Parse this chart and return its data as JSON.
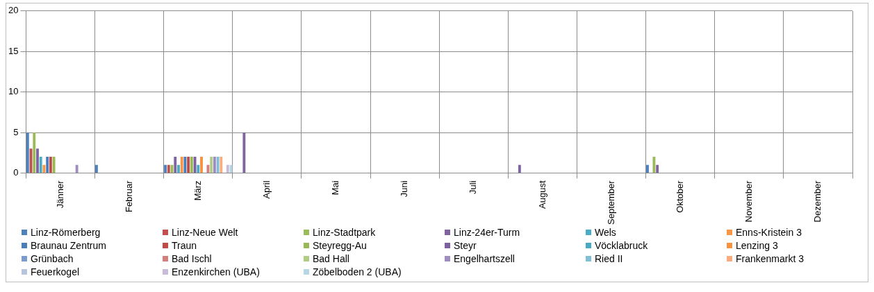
{
  "chart_data": {
    "type": "bar",
    "categories": [
      "Jänner",
      "Februar",
      "März",
      "April",
      "Mai",
      "Juni",
      "Juli",
      "August",
      "September",
      "Oktober",
      "November",
      "Dezember"
    ],
    "ylim": [
      0,
      20
    ],
    "yticks": [
      0,
      5,
      10,
      15,
      20
    ],
    "grid": true,
    "legend": "bottom",
    "series": [
      {
        "name": "Linz-Römerberg",
        "color": "#4f81bd",
        "values": [
          5,
          1,
          1,
          0,
          0,
          0,
          0,
          0,
          0,
          1,
          0,
          0
        ]
      },
      {
        "name": "Linz-Neue Welt",
        "color": "#c0504d",
        "values": [
          3,
          0,
          1,
          0,
          0,
          0,
          0,
          0,
          0,
          0,
          0,
          0
        ]
      },
      {
        "name": "Linz-Stadtpark",
        "color": "#9bbb59",
        "values": [
          5,
          0,
          1,
          0,
          0,
          0,
          0,
          0,
          0,
          2,
          0,
          0
        ]
      },
      {
        "name": "Linz-24er-Turm",
        "color": "#8064a2",
        "values": [
          3,
          0,
          2,
          5,
          0,
          0,
          0,
          1,
          0,
          1,
          0,
          0
        ]
      },
      {
        "name": "Wels",
        "color": "#4bacc6",
        "values": [
          2,
          0,
          1,
          0,
          0,
          0,
          0,
          0,
          0,
          0,
          0,
          0
        ]
      },
      {
        "name": "Enns-Kristein 3",
        "color": "#f79646",
        "values": [
          1,
          0,
          2,
          0,
          0,
          0,
          0,
          0,
          0,
          0,
          0,
          0
        ]
      },
      {
        "name": "Braunau Zentrum",
        "color": "#4a7ebb",
        "values": [
          2,
          0,
          2,
          0,
          0,
          0,
          0,
          0,
          0,
          0,
          0,
          0
        ]
      },
      {
        "name": "Traun",
        "color": "#be4b48",
        "values": [
          2,
          0,
          2,
          0,
          0,
          0,
          0,
          0,
          0,
          0,
          0,
          0
        ]
      },
      {
        "name": "Steyregg-Au",
        "color": "#98b954",
        "values": [
          2,
          0,
          2,
          0,
          0,
          0,
          0,
          0,
          0,
          0,
          0,
          0
        ]
      },
      {
        "name": "Steyr",
        "color": "#7d60a0",
        "values": [
          0,
          0,
          2,
          0,
          0,
          0,
          0,
          0,
          0,
          0,
          0,
          0
        ]
      },
      {
        "name": "Vöcklabruck",
        "color": "#46aac5",
        "values": [
          0,
          0,
          1,
          0,
          0,
          0,
          0,
          0,
          0,
          0,
          0,
          0
        ]
      },
      {
        "name": "Lenzing 3",
        "color": "#f69240",
        "values": [
          0,
          0,
          2,
          0,
          0,
          0,
          0,
          0,
          0,
          0,
          0,
          0
        ]
      },
      {
        "name": "Grünbach",
        "color": "#7b9bd0",
        "values": [
          0,
          0,
          0,
          0,
          0,
          0,
          0,
          0,
          0,
          0,
          0,
          0
        ]
      },
      {
        "name": "Bad Ischl",
        "color": "#d37f7c",
        "values": [
          0,
          0,
          1,
          0,
          0,
          0,
          0,
          0,
          0,
          0,
          0,
          0
        ]
      },
      {
        "name": "Bad Hall",
        "color": "#b1cd85",
        "values": [
          0,
          0,
          2,
          0,
          0,
          0,
          0,
          0,
          0,
          0,
          0,
          0
        ]
      },
      {
        "name": "Engelhartszell",
        "color": "#a08cbf",
        "values": [
          1,
          0,
          2,
          0,
          0,
          0,
          0,
          0,
          0,
          0,
          0,
          0
        ]
      },
      {
        "name": "Ried II",
        "color": "#7ebfd7",
        "values": [
          0,
          0,
          2,
          0,
          0,
          0,
          0,
          0,
          0,
          0,
          0,
          0
        ]
      },
      {
        "name": "Frankenmarkt 3",
        "color": "#f9ad7f",
        "values": [
          0,
          0,
          2,
          0,
          0,
          0,
          0,
          0,
          0,
          0,
          0,
          0
        ]
      },
      {
        "name": "Feuerkogel",
        "color": "#b7c4dd",
        "values": [
          0,
          0,
          0,
          0,
          0,
          0,
          0,
          0,
          0,
          0,
          0,
          0
        ]
      },
      {
        "name": "Enzenkirchen (UBA)",
        "color": "#c8bcd8",
        "values": [
          0,
          0,
          1,
          0,
          0,
          0,
          0,
          0,
          0,
          0,
          0,
          0
        ]
      },
      {
        "name": "Zöbelboden 2 (UBA)",
        "color": "#b8d7e4",
        "values": [
          0,
          0,
          1,
          0,
          0,
          0,
          0,
          0,
          0,
          0,
          0,
          0
        ]
      }
    ]
  }
}
